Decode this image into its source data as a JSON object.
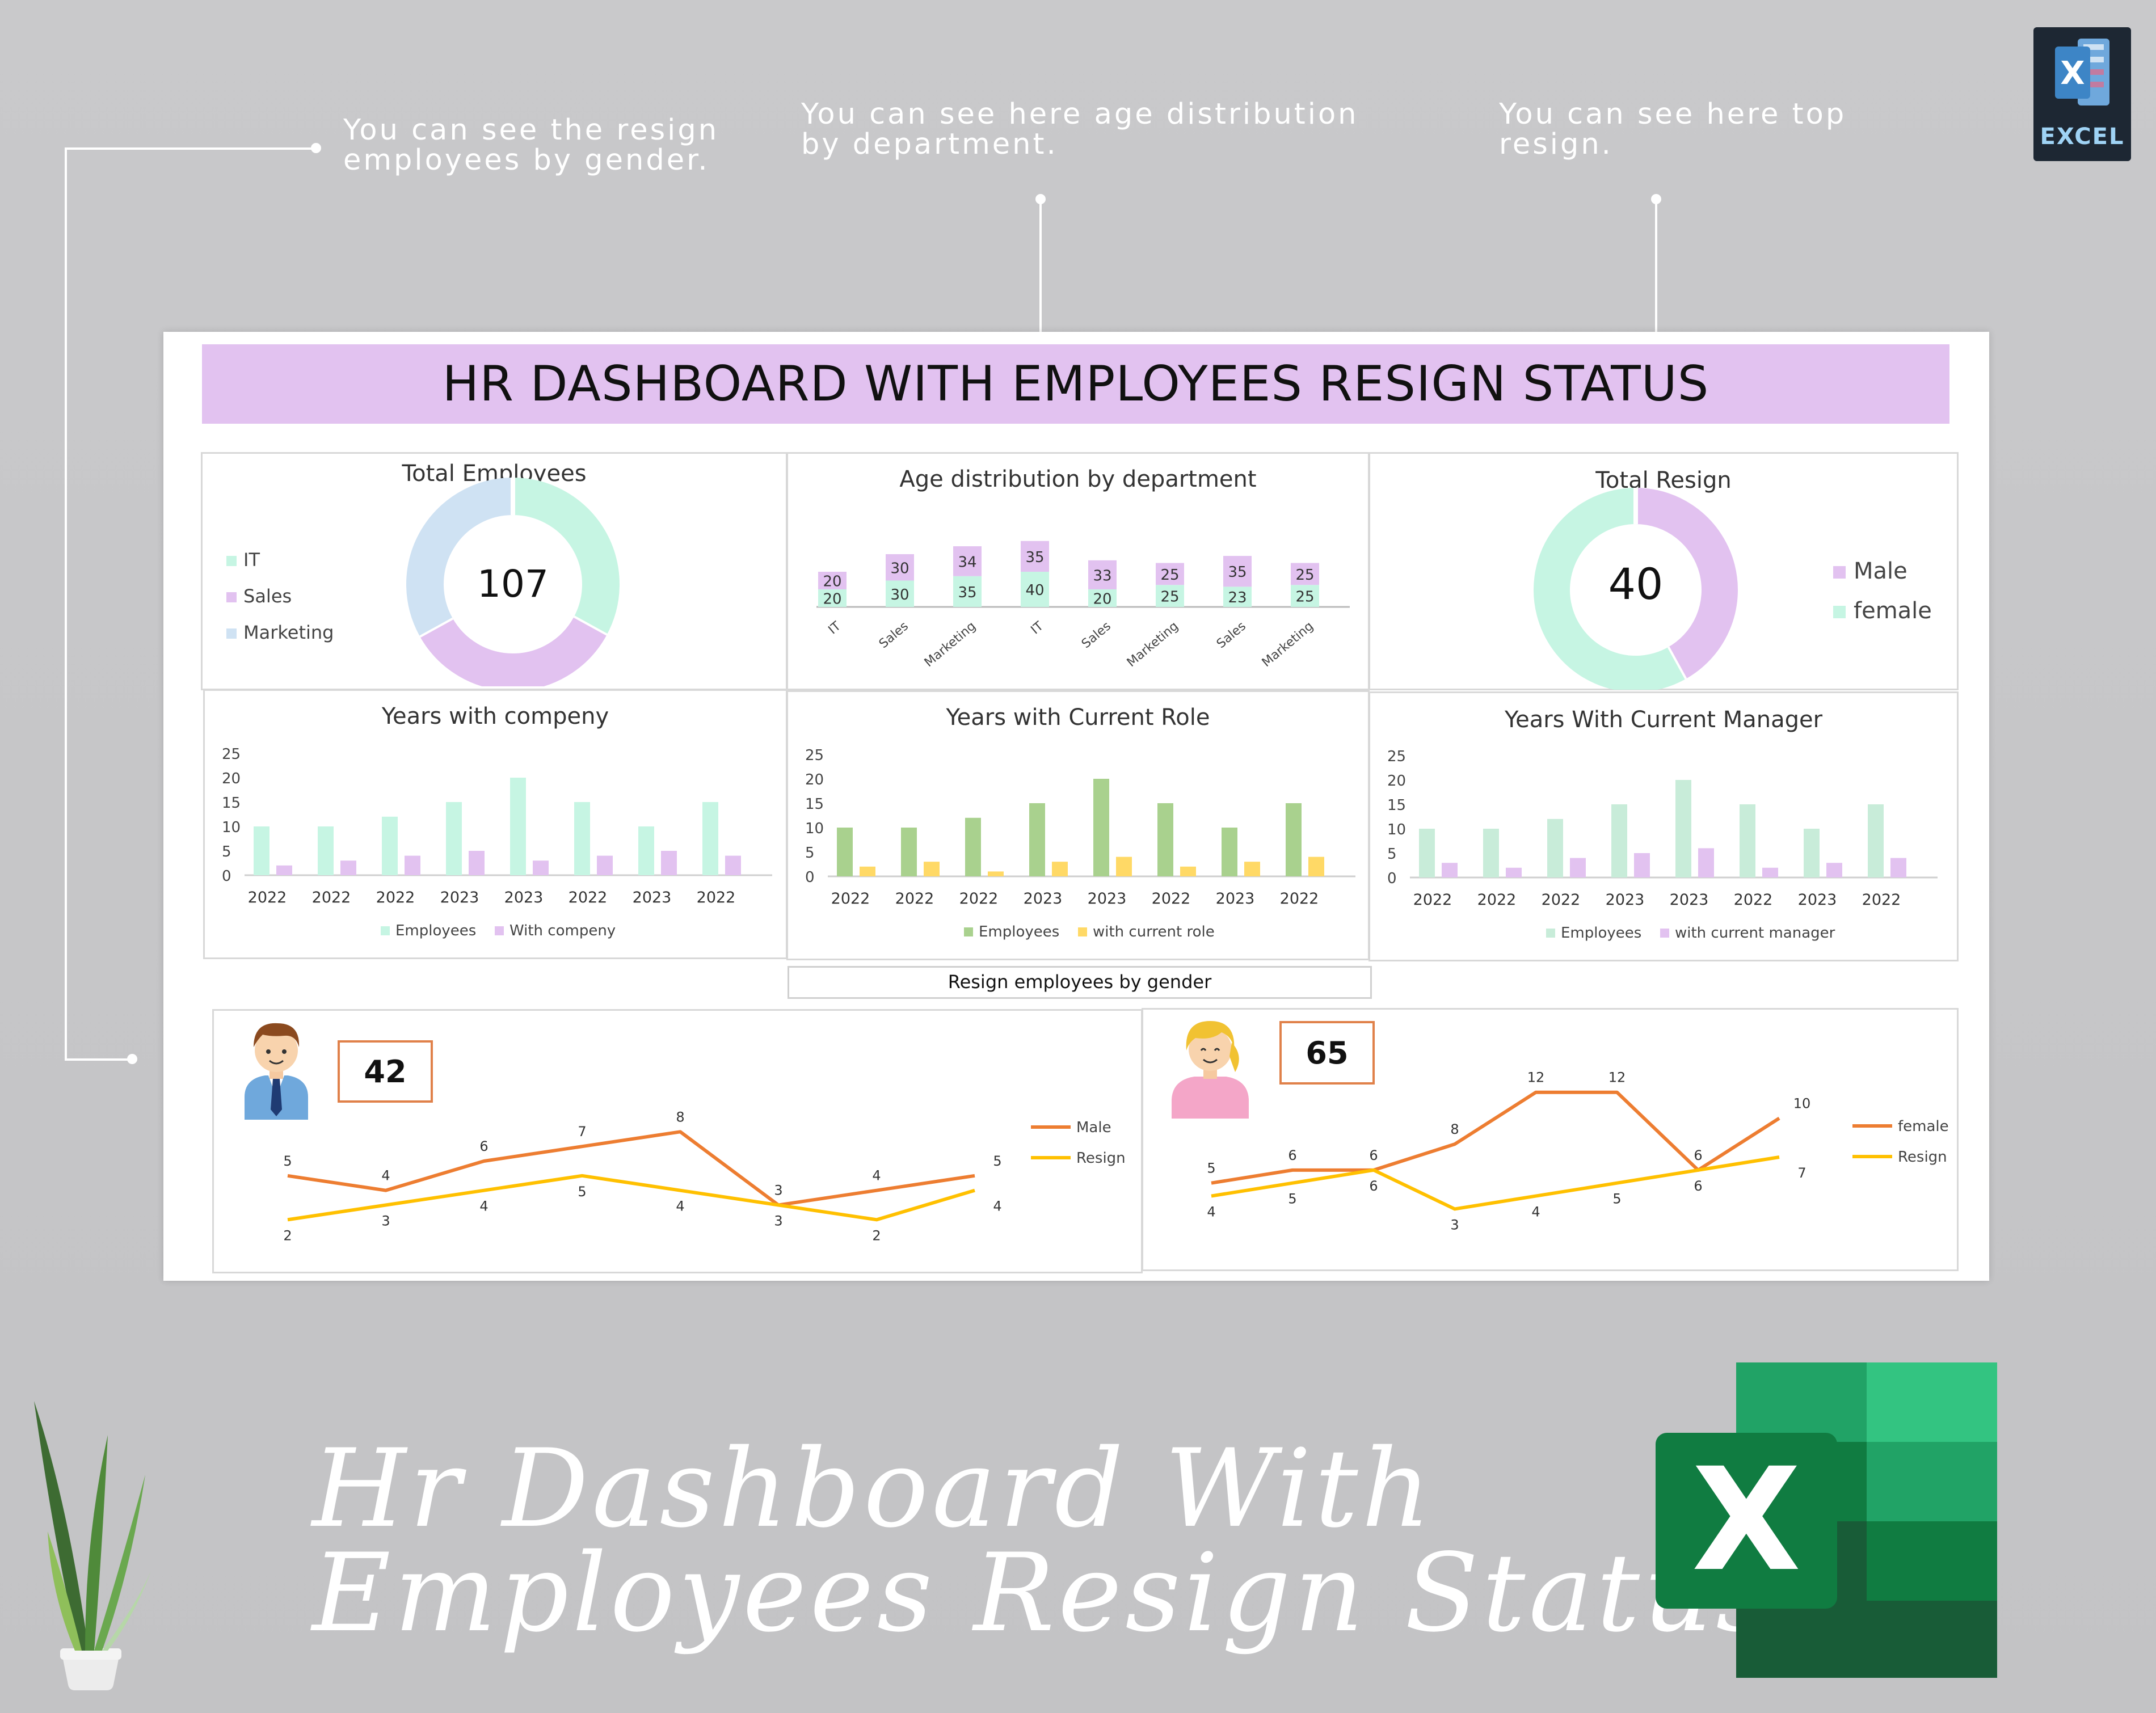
{
  "notes": {
    "gender": [
      "You can see the resign",
      "employees by gender."
    ],
    "age": [
      "You can see here age distribution",
      "by department."
    ],
    "top": [
      "You can see here top",
      "resign."
    ]
  },
  "badge_excel": "EXCEL",
  "banner_title": "HR DASHBOARD WITH EMPLOYEES RESIGN STATUS",
  "total_employees": {
    "title": "Total Employees",
    "value": "107",
    "legend": [
      "IT",
      "Sales",
      "Marketing"
    ],
    "colors": [
      "#c6f5e3",
      "#e2c2f0",
      "#cfe2f3"
    ],
    "slices": [
      0.33,
      0.34,
      0.33
    ]
  },
  "age_chart": {
    "title": "Age distribution by department",
    "categories": [
      "IT",
      "Sales",
      "Marketing",
      "IT",
      "Sales",
      "Marketing",
      "Sales",
      "Marketing"
    ],
    "bottom": [
      20,
      30,
      35,
      40,
      20,
      25,
      23,
      25
    ],
    "top": [
      20,
      30,
      34,
      35,
      33,
      25,
      35,
      25
    ],
    "colors": [
      "#c6f5e3",
      "#e2c2f0"
    ]
  },
  "total_resign": {
    "title": "Total Resign",
    "value": "40",
    "legend": [
      "Male",
      "female"
    ],
    "colors": [
      "#e2c2f0",
      "#c6f5e3"
    ],
    "slices": [
      0.42,
      0.58
    ]
  },
  "chart_data": [
    {
      "type": "bar",
      "title": "Years with compeny",
      "categories": [
        "2022",
        "2022",
        "2022",
        "2023",
        "2023",
        "2022",
        "2023",
        "2022"
      ],
      "yticks": [
        "0",
        "5",
        "10",
        "15",
        "20",
        "25"
      ],
      "ylim": [
        0,
        25
      ],
      "series": [
        {
          "name": "Employees",
          "color": "#c6f5e3",
          "values": [
            10,
            10,
            12,
            15,
            20,
            15,
            10,
            15
          ]
        },
        {
          "name": "With compeny",
          "color": "#e2c2f0",
          "values": [
            2,
            3,
            4,
            5,
            3,
            4,
            5,
            4
          ]
        }
      ]
    },
    {
      "type": "bar",
      "title": "Years with Current Role",
      "categories": [
        "2022",
        "2022",
        "2022",
        "2023",
        "2023",
        "2022",
        "2023",
        "2022"
      ],
      "yticks": [
        "0",
        "5",
        "10",
        "15",
        "20",
        "25"
      ],
      "ylim": [
        0,
        25
      ],
      "series": [
        {
          "name": "Employees",
          "color": "#a9d18e",
          "values": [
            10,
            10,
            12,
            15,
            20,
            15,
            10,
            15
          ]
        },
        {
          "name": "with current role",
          "color": "#ffd966",
          "values": [
            2,
            3,
            1,
            3,
            4,
            2,
            3,
            4
          ]
        }
      ]
    },
    {
      "type": "bar",
      "title": "Years With Current Manager",
      "categories": [
        "2022",
        "2022",
        "2022",
        "2023",
        "2023",
        "2022",
        "2023",
        "2022"
      ],
      "yticks": [
        "0",
        "5",
        "10",
        "15",
        "20",
        "25"
      ],
      "ylim": [
        0,
        25
      ],
      "series": [
        {
          "name": "Employees",
          "color": "#c8ecd9",
          "values": [
            10,
            10,
            12,
            15,
            20,
            15,
            10,
            15
          ]
        },
        {
          "name": "with current manager",
          "color": "#e2c2f0",
          "values": [
            3,
            2,
            4,
            5,
            6,
            2,
            3,
            4
          ]
        }
      ]
    },
    {
      "type": "line",
      "series": [
        {
          "name": "Male",
          "color": "#ed7d31",
          "values": [
            5,
            4,
            6,
            7,
            8,
            3,
            4,
            5
          ]
        },
        {
          "name": "Resign",
          "color": "#ffc000",
          "values": [
            2,
            3,
            4,
            5,
            4,
            3,
            2,
            4
          ]
        }
      ],
      "ylim": [
        0,
        12
      ]
    },
    {
      "type": "line",
      "series": [
        {
          "name": "female",
          "color": "#ed7d31",
          "values": [
            5,
            6,
            6,
            8,
            12,
            12,
            6,
            10
          ]
        },
        {
          "name": "Resign",
          "color": "#ffc000",
          "values": [
            4,
            5,
            6,
            3,
            4,
            5,
            6,
            7
          ]
        }
      ],
      "ylim": [
        0,
        14
      ]
    }
  ],
  "gender_caption": "Resign employees by gender",
  "male_badge": "42",
  "female_badge": "65",
  "footer_title": [
    "Hr Dashboard With",
    "Employees Resign Status"
  ],
  "excel_logo_letter": "X"
}
